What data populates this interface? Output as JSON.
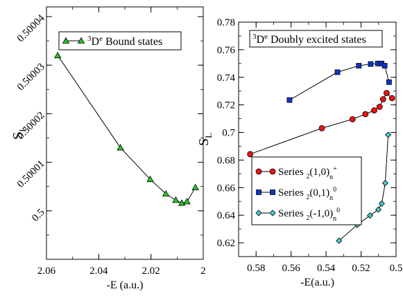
{
  "chart_data": [
    {
      "type": "line",
      "xlabel": "-E (a.u.)",
      "ylabel": "S",
      "ylabel_sub": "L",
      "xlim": [
        2.06,
        2.0
      ],
      "ylim": [
        0.49999,
        0.500042
      ],
      "x_reversed": true,
      "xticks": [
        2.06,
        2.04,
        2.02,
        2.0
      ],
      "xtick_labels": [
        "2.06",
        "2.04",
        "2.02",
        "2"
      ],
      "yticks": [
        0.5,
        0.50001,
        0.50002,
        0.50003,
        0.50004
      ],
      "ytick_labels": [
        "0.5",
        "0.50001",
        "0.50002",
        "0.50003",
        "0.50004"
      ],
      "ytick_rotation": -45,
      "legend_position": "top-right",
      "series": [
        {
          "name_sup": "3",
          "name_main": "D",
          "name_sup2": "e",
          "name_tail": "  Bound states",
          "color": "#22cc22",
          "marker": "triangle",
          "x": [
            2.0557,
            2.0317,
            2.0203,
            2.0143,
            2.0105,
            2.0082,
            2.0062,
            2.003
          ],
          "y": [
            0.500032,
            0.500013,
            0.5000065,
            0.5000035,
            0.5000022,
            0.5000016,
            0.5000019,
            0.5000048
          ]
        }
      ]
    },
    {
      "type": "line",
      "xlabel": "-E(a.u.)",
      "ylabel": "S",
      "ylabel_sub": "L",
      "xlim": [
        0.59,
        0.5
      ],
      "ylim": [
        0.61,
        0.78
      ],
      "x_reversed": true,
      "xticks": [
        0.58,
        0.56,
        0.54,
        0.52,
        0.5
      ],
      "xtick_labels": [
        "0.58",
        "0.56",
        "0.54",
        "0.52",
        "0.5"
      ],
      "yticks": [
        0.62,
        0.64,
        0.66,
        0.68,
        0.7,
        0.72,
        0.74,
        0.76,
        0.78
      ],
      "ytick_labels": [
        "0.62",
        "0.64",
        "0.66",
        "0.68",
        "0.7",
        "0.72",
        "0.74",
        "0.76",
        "0.78"
      ],
      "title_box": {
        "sup": "3",
        "main": "D",
        "sup2": "e",
        "tail": " Doubly excited states"
      },
      "legend_position": "bottom-left",
      "series": [
        {
          "name_pre": "Series ",
          "name_sub": "2",
          "name_mid": "(1,0)",
          "name_sub2": "n",
          "name_sup": "+",
          "color": "#ee1111",
          "marker": "circle",
          "x": [
            0.5834,
            0.5424,
            0.5249,
            0.5175,
            0.5125,
            0.5094,
            0.5074,
            0.5054,
            0.5023
          ],
          "y": [
            0.6843,
            0.7031,
            0.7096,
            0.7133,
            0.716,
            0.7186,
            0.7241,
            0.7286,
            0.7249
          ]
        },
        {
          "name_pre": "Series ",
          "name_sub": "2",
          "name_mid": "(0,1)",
          "name_sub2": "n",
          "name_sup": "0",
          "color": "#1133cc",
          "marker": "square",
          "x": [
            0.5609,
            0.5335,
            0.5213,
            0.5145,
            0.5104,
            0.5083,
            0.5065,
            0.504
          ],
          "y": [
            0.7235,
            0.7437,
            0.7484,
            0.7496,
            0.75,
            0.75,
            0.7484,
            0.7365
          ]
        },
        {
          "name_pre": "Series ",
          "name_sub": "2",
          "name_mid": "(-1,0)",
          "name_sub2": "n",
          "name_sup": "0",
          "color": "#44cccc",
          "marker": "diamond",
          "x": [
            0.5326,
            0.5222,
            0.5149,
            0.5101,
            0.5082,
            0.5062,
            0.5045
          ],
          "y": [
            0.6215,
            0.633,
            0.6398,
            0.6441,
            0.6484,
            0.6633,
            0.6983
          ]
        }
      ]
    }
  ]
}
